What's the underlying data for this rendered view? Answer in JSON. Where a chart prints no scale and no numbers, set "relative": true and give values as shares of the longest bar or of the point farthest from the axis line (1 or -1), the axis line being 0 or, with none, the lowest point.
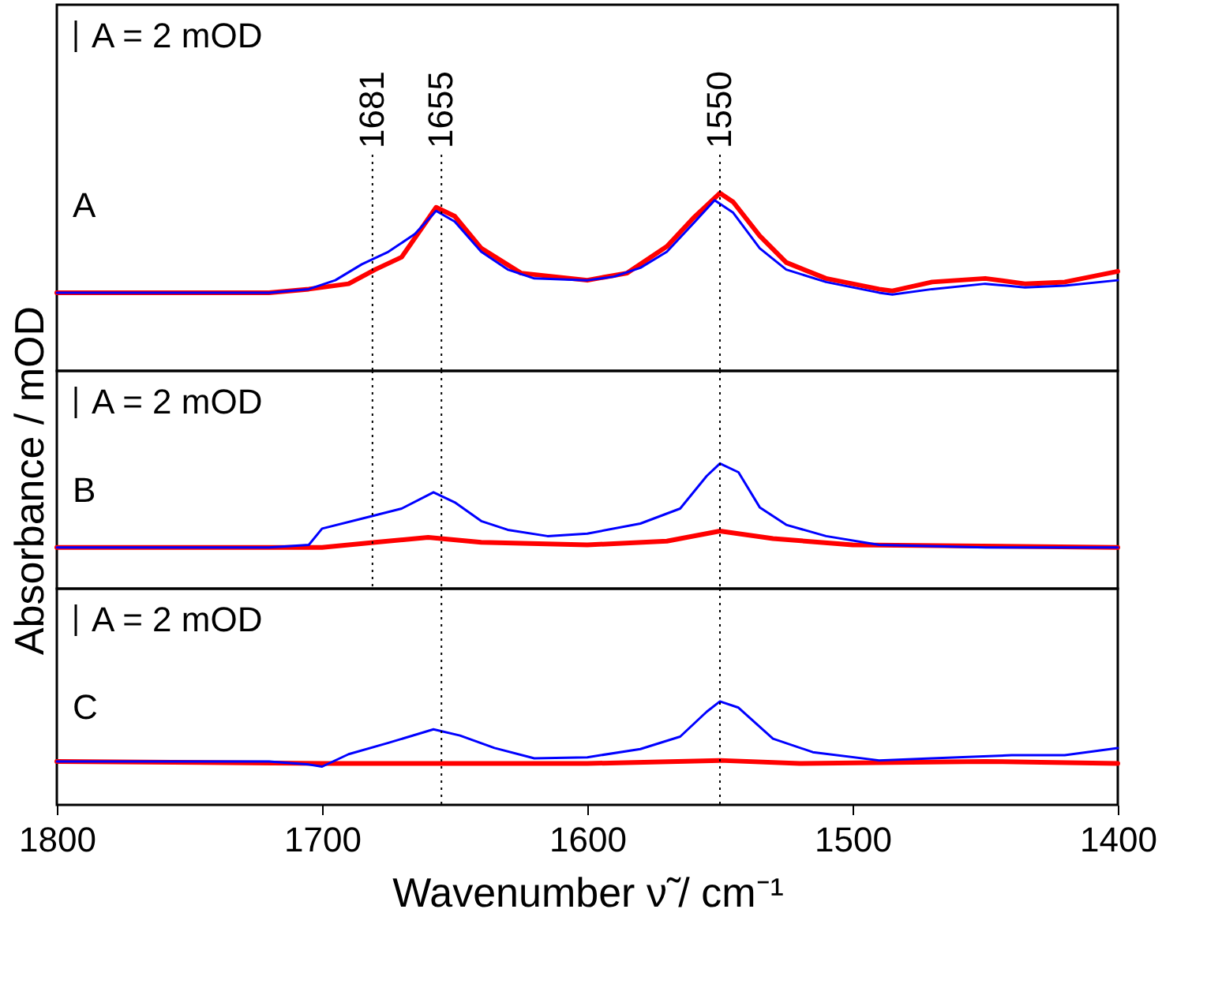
{
  "chart_data": [
    {
      "type": "line",
      "relative": true,
      "xlim": [
        1800,
        1400
      ],
      "xticks": [
        1800,
        1700,
        1600,
        1500,
        1400
      ],
      "tick_labels": false,
      "annotations": [
        "A = 2 mOD",
        "A"
      ],
      "ref_lines": [
        {
          "axis": "x",
          "value": 1681,
          "label": "1681",
          "line_style": "dotted"
        },
        {
          "axis": "x",
          "value": 1655,
          "label": "1655",
          "line_style": "dotted"
        },
        {
          "axis": "x",
          "value": 1550,
          "label": "1550",
          "line_style": "dotted"
        }
      ],
      "series": [
        {
          "color": "#ff0000",
          "x": [
            1800,
            1750,
            1720,
            1705,
            1690,
            1680,
            1670,
            1657,
            1650,
            1640,
            1625,
            1600,
            1585,
            1570,
            1560,
            1550,
            1545,
            1535,
            1525,
            1510,
            1490,
            1485,
            1470,
            1450,
            1435,
            1420,
            1400
          ],
          "values": [
            0.44,
            0.44,
            0.44,
            0.46,
            0.49,
            0.57,
            0.64,
            0.92,
            0.87,
            0.69,
            0.55,
            0.51,
            0.55,
            0.7,
            0.86,
            1,
            0.95,
            0.76,
            0.61,
            0.52,
            0.46,
            0.45,
            0.5,
            0.52,
            0.49,
            0.5,
            0.56
          ]
        },
        {
          "color": "#0000ff",
          "x": [
            1800,
            1750,
            1720,
            1705,
            1695,
            1685,
            1675,
            1665,
            1657,
            1650,
            1640,
            1630,
            1620,
            1600,
            1590,
            1580,
            1570,
            1560,
            1552,
            1545,
            1535,
            1525,
            1510,
            1490,
            1485,
            1470,
            1450,
            1435,
            1420,
            1400
          ],
          "values": [
            0.44,
            0.44,
            0.44,
            0.46,
            0.51,
            0.6,
            0.67,
            0.77,
            0.9,
            0.84,
            0.67,
            0.57,
            0.52,
            0.51,
            0.53,
            0.58,
            0.67,
            0.83,
            0.96,
            0.89,
            0.69,
            0.57,
            0.5,
            0.44,
            0.43,
            0.46,
            0.49,
            0.47,
            0.48,
            0.51
          ]
        }
      ]
    },
    {
      "type": "line",
      "relative": true,
      "xlim": [
        1800,
        1400
      ],
      "xticks": [
        1800,
        1700,
        1600,
        1500,
        1400
      ],
      "tick_labels": false,
      "ylabel": "Absorbance / mOD",
      "annotations": [
        "A = 2 mOD",
        "B"
      ],
      "ref_lines": [
        {
          "axis": "x",
          "value": 1681,
          "line_style": "dotted"
        },
        {
          "axis": "x",
          "value": 1655,
          "line_style": "dotted"
        },
        {
          "axis": "x",
          "value": 1550,
          "line_style": "dotted"
        }
      ],
      "series": [
        {
          "color": "#ff0000",
          "x": [
            1800,
            1700,
            1680,
            1660,
            1640,
            1600,
            1570,
            1550,
            1530,
            1500,
            1400
          ],
          "values": [
            0.33,
            0.33,
            0.37,
            0.41,
            0.37,
            0.35,
            0.38,
            0.46,
            0.4,
            0.35,
            0.33
          ]
        },
        {
          "color": "#0000ff",
          "x": [
            1800,
            1720,
            1705,
            1700,
            1685,
            1670,
            1658,
            1650,
            1640,
            1630,
            1615,
            1600,
            1580,
            1565,
            1555,
            1550,
            1543,
            1535,
            1525,
            1510,
            1490,
            1450,
            1400
          ],
          "values": [
            0.33,
            0.33,
            0.35,
            0.48,
            0.56,
            0.64,
            0.77,
            0.69,
            0.54,
            0.47,
            0.42,
            0.44,
            0.52,
            0.64,
            0.9,
            1,
            0.93,
            0.65,
            0.51,
            0.42,
            0.35,
            0.33,
            0.33
          ]
        }
      ]
    },
    {
      "type": "line",
      "relative": true,
      "xlim": [
        1800,
        1400
      ],
      "xticks": [
        1800,
        1700,
        1600,
        1500,
        1400
      ],
      "tick_labels": "x",
      "xlabel": "Wavenumber ν̃ / cm⁻¹",
      "annotations": [
        "A = 2 mOD",
        "C"
      ],
      "ref_lines": [
        {
          "axis": "x",
          "value": 1655,
          "line_style": "dotted"
        },
        {
          "axis": "x",
          "value": 1550,
          "line_style": "dotted"
        }
      ],
      "series": [
        {
          "color": "#ff0000",
          "x": [
            1800,
            1700,
            1650,
            1600,
            1550,
            1520,
            1450,
            1400
          ],
          "values": [
            0.42,
            0.4,
            0.4,
            0.4,
            0.43,
            0.4,
            0.42,
            0.4
          ]
        },
        {
          "color": "#0000ff",
          "x": [
            1800,
            1720,
            1705,
            1700,
            1690,
            1675,
            1658,
            1648,
            1635,
            1620,
            1600,
            1580,
            1565,
            1555,
            1550,
            1543,
            1530,
            1515,
            1490,
            1470,
            1440,
            1420,
            1400
          ],
          "values": [
            0.42,
            0.42,
            0.39,
            0.37,
            0.49,
            0.6,
            0.73,
            0.67,
            0.55,
            0.45,
            0.46,
            0.54,
            0.66,
            0.9,
            1,
            0.94,
            0.64,
            0.51,
            0.43,
            0.45,
            0.48,
            0.48,
            0.55
          ]
        }
      ]
    }
  ]
}
